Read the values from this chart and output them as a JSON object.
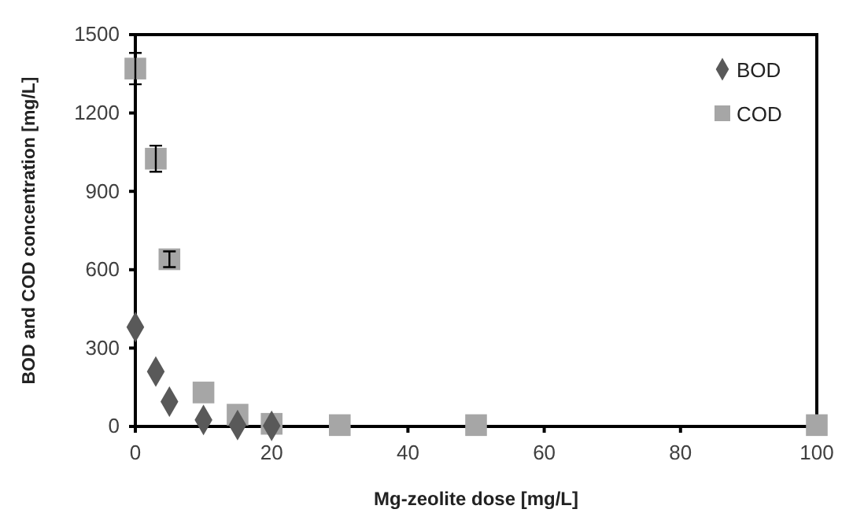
{
  "chart_data": {
    "type": "scatter",
    "xlabel": "Mg-zeolite dose [mg/L]",
    "ylabel": "BOD and COD concentration  [mg/L]",
    "xlim": [
      0,
      100
    ],
    "xticks": [
      0,
      20,
      40,
      60,
      80,
      100
    ],
    "ylim": [
      0,
      1500
    ],
    "yticks": [
      0,
      300,
      600,
      900,
      1200,
      1500
    ],
    "grid": false,
    "legend": "top right",
    "series": [
      {
        "name": "BOD",
        "color": "#595959",
        "marker": "diamond",
        "x": [
          0,
          3,
          5,
          10,
          15,
          20
        ],
        "values": [
          380,
          210,
          95,
          25,
          5,
          2
        ]
      },
      {
        "name": "COD",
        "color": "#a6a6a6",
        "marker": "square",
        "x": [
          0,
          3,
          5,
          10,
          15,
          20,
          30,
          50,
          100
        ],
        "values": [
          1370,
          1025,
          640,
          130,
          45,
          10,
          5,
          5,
          5
        ],
        "errors": [
          60,
          50,
          30,
          null,
          null,
          null,
          null,
          null,
          null
        ]
      }
    ]
  }
}
